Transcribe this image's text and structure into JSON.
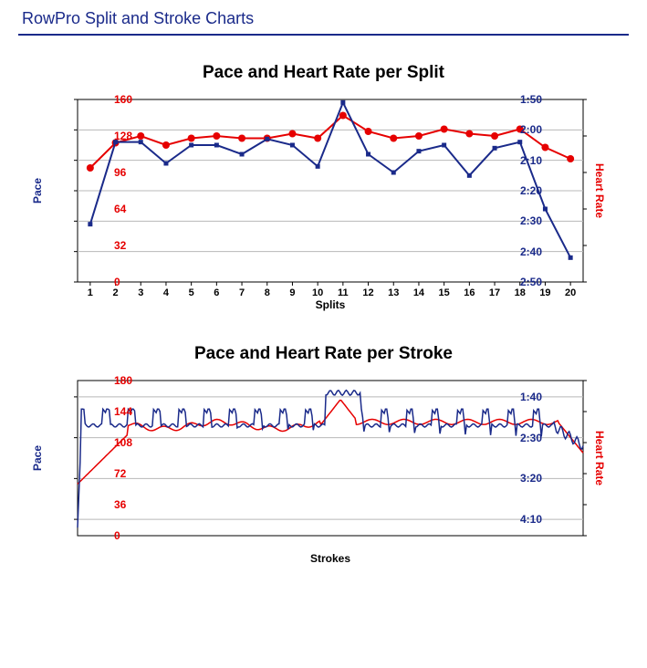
{
  "page": {
    "title": "RowPro Split and Stroke Charts",
    "title_color": "#1a2a8a",
    "rule_color": "#1a2a8a"
  },
  "chart1": {
    "title": "Pace and Heart Rate per Split",
    "type": "line",
    "xlabel": "Splits",
    "x_categories": [
      "1",
      "2",
      "3",
      "4",
      "5",
      "6",
      "7",
      "8",
      "9",
      "10",
      "11",
      "12",
      "13",
      "14",
      "15",
      "16",
      "17",
      "18",
      "19",
      "20"
    ],
    "left_axis": {
      "label": "Pace",
      "color": "#1a2a8a",
      "ticks": [
        "1:50",
        "2:00",
        "2:10",
        "2:20",
        "2:30",
        "2:40",
        "2:50"
      ],
      "tick_seconds": [
        110,
        120,
        130,
        140,
        150,
        160,
        170
      ],
      "min_sec": 110,
      "max_sec": 170,
      "fontsize": 12
    },
    "right_axis": {
      "label": "Heart Rate",
      "color": "#e60000",
      "ticks": [
        "160",
        "128",
        "96",
        "64",
        "32",
        "0"
      ],
      "tick_values": [
        160,
        128,
        96,
        64,
        32,
        0
      ],
      "min": 0,
      "max": 160,
      "fontsize": 12
    },
    "pace_series": {
      "color": "#1a2a8a",
      "marker": "square",
      "marker_size": 5,
      "line_width": 2,
      "values_sec": [
        151,
        124,
        124,
        131,
        125,
        125,
        128,
        123,
        125,
        132,
        111,
        128,
        134,
        127,
        125,
        135,
        126,
        124,
        146,
        162
      ]
    },
    "hr_series": {
      "color": "#e60000",
      "marker": "circle",
      "marker_size": 4,
      "line_width": 2,
      "values": [
        100,
        122,
        128,
        120,
        126,
        128,
        126,
        126,
        130,
        126,
        146,
        132,
        126,
        128,
        134,
        130,
        128,
        134,
        118,
        108
      ]
    },
    "grid_color": "#b8b8b8",
    "background_color": "#ffffff"
  },
  "chart2": {
    "title": "Pace and Heart Rate per Stroke",
    "type": "line",
    "xlabel": "Strokes",
    "x_count": 400,
    "left_axis": {
      "label": "Pace",
      "color": "#1a2a8a",
      "ticks": [
        "1:40",
        "2:30",
        "3:20",
        "4:10"
      ],
      "tick_seconds": [
        100,
        150,
        200,
        250
      ],
      "min_sec": 80,
      "max_sec": 270,
      "fontsize": 12
    },
    "right_axis": {
      "label": "Heart Rate",
      "color": "#e60000",
      "ticks": [
        "180",
        "144",
        "108",
        "72",
        "36",
        "0"
      ],
      "tick_values": [
        180,
        144,
        108,
        72,
        36,
        0
      ],
      "min": 0,
      "max": 180,
      "fontsize": 12
    },
    "pace_stroke": {
      "color": "#1a2a8a",
      "line_width": 1.5,
      "pattern": {
        "base_sec": 135,
        "spike_low_sec": 115,
        "spike_high_sec": 150,
        "noise_sec": 5,
        "segments": 20,
        "mid_burst_sec": 95,
        "tail_rise_sec": 160
      }
    },
    "hr_stroke": {
      "color": "#e60000",
      "line_width": 1.5,
      "pattern": {
        "start": 60,
        "ramp_to": 118,
        "ramp_len": 40,
        "plateau": 128,
        "mid_peak": 158,
        "mid_peak_pos": 0.52,
        "late": 132,
        "tail_drop": 96
      }
    },
    "grid_color": "#b8b8b8",
    "background_color": "#ffffff"
  }
}
